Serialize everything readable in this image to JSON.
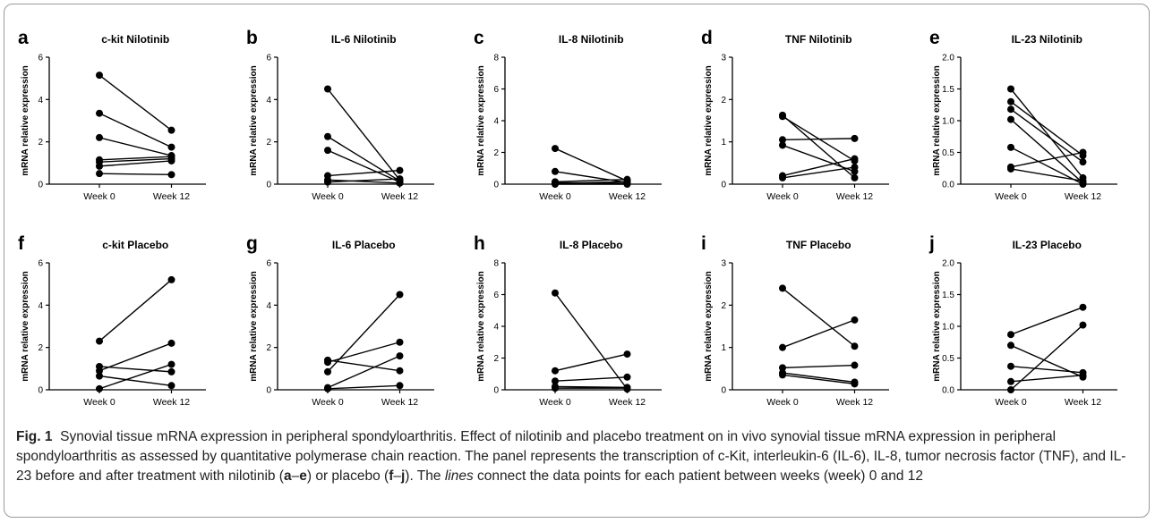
{
  "panels": [
    {
      "letter": "a",
      "title": "c-kit Nilotinib",
      "ylabel": "mRNA relative expression",
      "xcategories": [
        "Week 0",
        "Week 12"
      ],
      "ylim": [
        0,
        6
      ],
      "yticks": [
        0,
        2,
        4,
        6
      ],
      "lines": [
        [
          5.15,
          2.55
        ],
        [
          3.35,
          1.75
        ],
        [
          2.2,
          1.35
        ],
        [
          1.15,
          1.3
        ],
        [
          1.05,
          1.2
        ],
        [
          0.85,
          1.1
        ],
        [
          0.5,
          0.45
        ]
      ]
    },
    {
      "letter": "b",
      "title": "IL-6 Nilotinib",
      "ylabel": "mRNA relative expression",
      "xcategories": [
        "Week 0",
        "Week 12"
      ],
      "ylim": [
        0,
        6
      ],
      "yticks": [
        0,
        2,
        4,
        6
      ],
      "lines": [
        [
          4.5,
          0.2
        ],
        [
          2.25,
          0.15
        ],
        [
          1.6,
          0.1
        ],
        [
          0.4,
          0.65
        ],
        [
          0.2,
          0.05
        ],
        [
          0.1,
          0.25
        ]
      ]
    },
    {
      "letter": "c",
      "title": "IL-8 Nilotinib",
      "ylabel": "mRNA relative expression",
      "xcategories": [
        "Week 0",
        "Week 12"
      ],
      "ylim": [
        0,
        8
      ],
      "yticks": [
        0,
        2,
        4,
        6,
        8
      ],
      "lines": [
        [
          2.25,
          0.2
        ],
        [
          0.8,
          0.1
        ],
        [
          0.15,
          0.3
        ],
        [
          0.1,
          0.05
        ],
        [
          0.05,
          0.15
        ],
        [
          0.0,
          0.0
        ]
      ]
    },
    {
      "letter": "d",
      "title": "TNF Nilotinib",
      "ylabel": "mRNA relative expression",
      "xcategories": [
        "Week 0",
        "Week 12"
      ],
      "ylim": [
        0,
        3
      ],
      "yticks": [
        0,
        1,
        2,
        3
      ],
      "lines": [
        [
          1.63,
          0.15
        ],
        [
          1.6,
          0.55
        ],
        [
          1.05,
          1.08
        ],
        [
          0.92,
          0.3
        ],
        [
          0.2,
          0.6
        ],
        [
          0.15,
          0.4
        ]
      ]
    },
    {
      "letter": "e",
      "title": "IL-23 Nilotinib",
      "ylabel": "mRNA relative expression",
      "xcategories": [
        "Week 0",
        "Week 12"
      ],
      "ylim": [
        0,
        2.0
      ],
      "yticks": [
        "0.0",
        "0.5",
        "1.0",
        "1.5",
        "2.0"
      ],
      "lines": [
        [
          1.5,
          0.1
        ],
        [
          1.3,
          0.45
        ],
        [
          1.18,
          0.35
        ],
        [
          1.02,
          0.02
        ],
        [
          0.58,
          0.0
        ],
        [
          0.27,
          0.5
        ],
        [
          0.24,
          0.05
        ]
      ]
    },
    {
      "letter": "f",
      "title": "c-kit Placebo",
      "ylabel": "mRNA relative expression",
      "xcategories": [
        "Week 0",
        "Week 12"
      ],
      "ylim": [
        0,
        6
      ],
      "yticks": [
        0,
        2,
        4,
        6
      ],
      "lines": [
        [
          2.3,
          5.2
        ],
        [
          1.1,
          0.85
        ],
        [
          0.9,
          2.2
        ],
        [
          0.65,
          0.2
        ],
        [
          0.05,
          1.2
        ]
      ]
    },
    {
      "letter": "g",
      "title": "IL-6 Placebo",
      "ylabel": "mRNA relative expression",
      "xcategories": [
        "Week 0",
        "Week 12"
      ],
      "ylim": [
        0,
        6
      ],
      "yticks": [
        0,
        2,
        4,
        6
      ],
      "lines": [
        [
          1.4,
          0.9
        ],
        [
          1.3,
          2.25
        ],
        [
          0.85,
          4.5
        ],
        [
          0.1,
          1.6
        ],
        [
          0.05,
          0.2
        ]
      ]
    },
    {
      "letter": "h",
      "title": "IL-8 Placebo",
      "ylabel": "mRNA relative expression",
      "xcategories": [
        "Week 0",
        "Week 12"
      ],
      "ylim": [
        0,
        8
      ],
      "yticks": [
        0,
        2,
        4,
        6,
        8
      ],
      "lines": [
        [
          6.1,
          0.05
        ],
        [
          1.2,
          2.25
        ],
        [
          0.55,
          0.8
        ],
        [
          0.2,
          0.15
        ],
        [
          0.1,
          0.1
        ]
      ]
    },
    {
      "letter": "i",
      "title": "TNF Placebo",
      "ylabel": "mRNA relative expression",
      "xcategories": [
        "Week 0",
        "Week 12"
      ],
      "ylim": [
        0,
        3
      ],
      "yticks": [
        0,
        1,
        2,
        3
      ],
      "lines": [
        [
          2.4,
          1.03
        ],
        [
          1.0,
          1.65
        ],
        [
          0.52,
          0.58
        ],
        [
          0.4,
          0.18
        ],
        [
          0.35,
          0.14
        ]
      ]
    },
    {
      "letter": "j",
      "title": "IL-23 Placebo",
      "ylabel": "mRNA relative expression",
      "xcategories": [
        "Week 0",
        "Week 12"
      ],
      "ylim": [
        0,
        2.0
      ],
      "yticks": [
        "0.0",
        "0.5",
        "1.0",
        "1.5",
        "2.0"
      ],
      "lines": [
        [
          0.87,
          1.3
        ],
        [
          0.7,
          0.2
        ],
        [
          0.37,
          0.27
        ],
        [
          0.13,
          0.23
        ],
        [
          0.0,
          1.02
        ]
      ]
    }
  ],
  "chart_data": [
    {
      "type": "line",
      "title": "c-kit Nilotinib",
      "xlabel": "",
      "ylabel": "mRNA relative expression",
      "categories": [
        "Week 0",
        "Week 12"
      ],
      "ylim": [
        0,
        6
      ]
    },
    {
      "type": "line",
      "title": "IL-6 Nilotinib",
      "xlabel": "",
      "ylabel": "mRNA relative expression",
      "categories": [
        "Week 0",
        "Week 12"
      ],
      "ylim": [
        0,
        6
      ]
    },
    {
      "type": "line",
      "title": "IL-8 Nilotinib",
      "xlabel": "",
      "ylabel": "mRNA relative expression",
      "categories": [
        "Week 0",
        "Week 12"
      ],
      "ylim": [
        0,
        8
      ]
    },
    {
      "type": "line",
      "title": "TNF Nilotinib",
      "xlabel": "",
      "ylabel": "mRNA relative expression",
      "categories": [
        "Week 0",
        "Week 12"
      ],
      "ylim": [
        0,
        3
      ]
    },
    {
      "type": "line",
      "title": "IL-23 Nilotinib",
      "xlabel": "",
      "ylabel": "mRNA relative expression",
      "categories": [
        "Week 0",
        "Week 12"
      ],
      "ylim": [
        0,
        2.0
      ]
    },
    {
      "type": "line",
      "title": "c-kit Placebo",
      "xlabel": "",
      "ylabel": "mRNA relative expression",
      "categories": [
        "Week 0",
        "Week 12"
      ],
      "ylim": [
        0,
        6
      ]
    },
    {
      "type": "line",
      "title": "IL-6 Placebo",
      "xlabel": "",
      "ylabel": "mRNA relative expression",
      "categories": [
        "Week 0",
        "Week 12"
      ],
      "ylim": [
        0,
        6
      ]
    },
    {
      "type": "line",
      "title": "IL-8 Placebo",
      "xlabel": "",
      "ylabel": "mRNA relative expression",
      "categories": [
        "Week 0",
        "Week 12"
      ],
      "ylim": [
        0,
        8
      ]
    },
    {
      "type": "line",
      "title": "TNF Placebo",
      "xlabel": "",
      "ylabel": "mRNA relative expression",
      "categories": [
        "Week 0",
        "Week 12"
      ],
      "ylim": [
        0,
        3
      ]
    },
    {
      "type": "line",
      "title": "IL-23 Placebo",
      "xlabel": "",
      "ylabel": "mRNA relative expression",
      "categories": [
        "Week 0",
        "Week 12"
      ],
      "ylim": [
        0,
        2.0
      ]
    }
  ],
  "caption": {
    "label": "Fig. 1",
    "text_1": "Synovial tissue mRNA expression in peripheral spondyloarthritis. Effect of nilotinib and placebo treatment on in vivo synovial tissue mRNA expression in peripheral spondyloarthritis as assessed by quantitative polymerase chain reaction. The panel represents the transcription of c-Kit, interleukin-6 (IL-6), IL-8, tumor necrosis factor (TNF), and IL-23 before and after treatment with nilotinib (",
    "ref_a": "a",
    "dash_1": "–",
    "ref_e": "e",
    "text_2": ") or placebo (",
    "ref_f": "f",
    "dash_2": "–",
    "ref_j": "j",
    "text_3": "). The ",
    "lines_word": "lines",
    "text_4": " connect the data points for each patient between weeks (week) 0 and 12"
  },
  "style": {
    "line_color": "#000000",
    "marker_color": "#000000",
    "frame_border": "#9a9a9a"
  }
}
